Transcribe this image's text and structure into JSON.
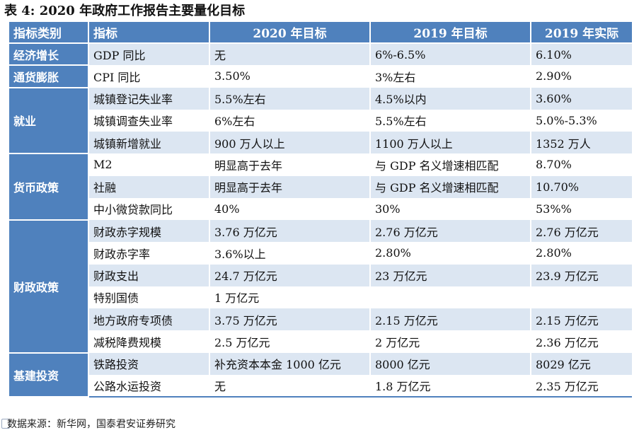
{
  "title": "表 4: 2020 年政府工作报告主要量化目标",
  "table": {
    "headers": [
      "指标类别",
      "指标",
      "2020 年目标",
      "2019 年目标",
      "2019 年实际"
    ],
    "groups": [
      {
        "category": "经济增长",
        "rows": [
          {
            "indicator": "GDP 同比",
            "t2020": "无",
            "t2019": "6%-6.5%",
            "a2019": "6.10%"
          }
        ]
      },
      {
        "category": "通货膨胀",
        "rows": [
          {
            "indicator": "CPI 同比",
            "t2020": "3.50%",
            "t2019": "3%左右",
            "a2019": "2.90%"
          }
        ]
      },
      {
        "category": "就业",
        "rows": [
          {
            "indicator": "城镇登记失业率",
            "t2020": "5.5%左右",
            "t2019": "4.5%以内",
            "a2019": "3.60%"
          },
          {
            "indicator": "城镇调查失业率",
            "t2020": "6%左右",
            "t2019": "5.5%左右",
            "a2019": "5.0%-5.3%"
          },
          {
            "indicator": "城镇新增就业",
            "t2020": "900 万人以上",
            "t2019": "1100 万人以上",
            "a2019": "1352 万人"
          }
        ]
      },
      {
        "category": "货币政策",
        "rows": [
          {
            "indicator": "M2",
            "t2020": "明显高于去年",
            "t2019": "与 GDP 名义增速相匹配",
            "a2019": "8.70%"
          },
          {
            "indicator": "社融",
            "t2020": "明显高于去年",
            "t2019": "与 GDP 名义增速相匹配",
            "a2019": "10.70%"
          },
          {
            "indicator": "中小微贷款同比",
            "t2020": "40%",
            "t2019": "30%",
            "a2019": "53%%"
          }
        ]
      },
      {
        "category": "财政政策",
        "rows": [
          {
            "indicator": "财政赤字规模",
            "t2020": "3.76 万亿元",
            "t2019": "2.76 万亿元",
            "a2019": "2.76 万亿元"
          },
          {
            "indicator": "财政赤字率",
            "t2020": "3.6%以上",
            "t2019": "2.80%",
            "a2019": "2.80%"
          },
          {
            "indicator": "财政支出",
            "t2020": "24.7 万亿元",
            "t2019": "23 万亿元",
            "a2019": "23.9 万亿元"
          },
          {
            "indicator": "特别国债",
            "t2020": "1 万亿元",
            "t2019": "",
            "a2019": ""
          },
          {
            "indicator": "地方政府专项债",
            "t2020": "3.75 万亿元",
            "t2019": "2.15 万亿元",
            "a2019": "2.15 万亿元"
          },
          {
            "indicator": "减税降费规模",
            "t2020": "2.5 万亿元",
            "t2019": "2 万亿元",
            "a2019": "2.36 万亿元"
          }
        ]
      },
      {
        "category": "基建投资",
        "rows": [
          {
            "indicator": "铁路投资",
            "t2020": "补充资本本金 1000 亿元",
            "t2019": "8000 亿元",
            "a2019": "8029 亿元"
          },
          {
            "indicator": "公路水运投资",
            "t2020": "无",
            "t2019": "1.8 万亿元",
            "a2019": "2.35 万亿元"
          }
        ]
      }
    ]
  },
  "source": "数据来源：新华网，国泰君安证券研究"
}
